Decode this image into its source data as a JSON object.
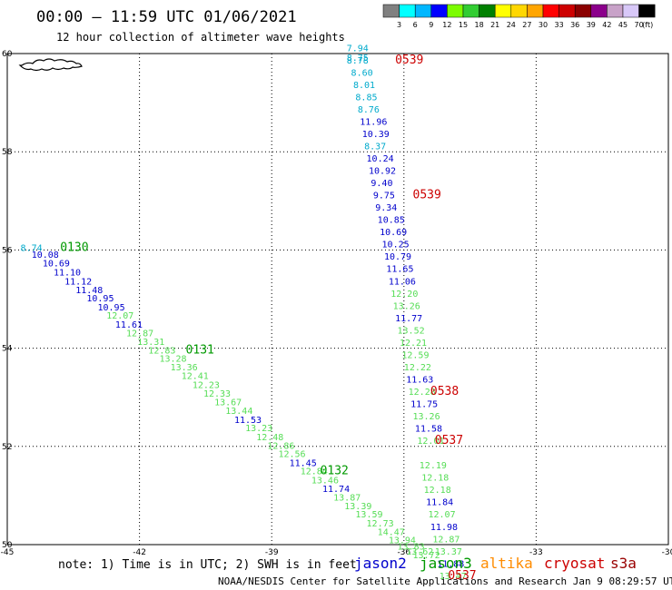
{
  "header": {
    "title": "00:00 — 11:59 UTC 01/06/2021",
    "subtitle": "12 hour collection of altimeter wave heights"
  },
  "colorbar": {
    "labels": [
      "3",
      "6",
      "9",
      "12",
      "15",
      "18",
      "21",
      "24",
      "27",
      "30",
      "33",
      "36",
      "39",
      "42",
      "45",
      "70"
    ],
    "colors": [
      "#808080",
      "#00ffff",
      "#00b7ff",
      "#0000ff",
      "#7cfc00",
      "#32cd32",
      "#008000",
      "#ffff00",
      "#ffd700",
      "#ffa500",
      "#ff0000",
      "#cd0000",
      "#8b0000",
      "#8b008b",
      "#c8a2c8",
      "#d8c8f8",
      "#000000"
    ],
    "unit": "(ft)"
  },
  "footer": {
    "note": "note: 1) Time is in UTC; 2) SWH is in feet",
    "credit": "NOAA/NESDIS Center for Satellite Applications and Research   Jan  9 08:29:57 UTC 2021"
  },
  "legend": [
    {
      "name": "jason2",
      "color": "#0000cc"
    },
    {
      "name": "jason3",
      "color": "#009900"
    },
    {
      "name": "altika",
      "color": "#ff8c00"
    },
    {
      "name": "cryosat",
      "color": "#cc0000"
    },
    {
      "name": "s3a",
      "color": "#990000"
    }
  ],
  "chart_data": {
    "type": "scatter",
    "xlim": [
      -45,
      -30
    ],
    "ylim": [
      50,
      60
    ],
    "xticks": [
      "-45",
      "-42",
      "-39",
      "-36",
      "-33",
      "-30"
    ],
    "yticks": [
      "50",
      "52",
      "54",
      "56",
      "58",
      "60"
    ],
    "grid": true,
    "series": [
      {
        "name": "jason3",
        "color_key": "jason3",
        "points": [
          {
            "x": -44.7,
            "y": 55.98,
            "v": "8.74",
            "c": "#00aacc"
          },
          {
            "x": -44.45,
            "y": 55.84,
            "v": "10.08",
            "c": "#0000cc"
          },
          {
            "x": -44.2,
            "y": 55.67,
            "v": "10.69",
            "c": "#0000cc"
          },
          {
            "x": -43.95,
            "y": 55.48,
            "v": "11.10",
            "c": "#0000cc"
          },
          {
            "x": -43.7,
            "y": 55.3,
            "v": "11.12",
            "c": "#0000cc"
          },
          {
            "x": -43.45,
            "y": 55.12,
            "v": "11.48",
            "c": "#0000cc"
          },
          {
            "x": -43.2,
            "y": 54.95,
            "v": "10.95",
            "c": "#0000cc"
          },
          {
            "x": -42.95,
            "y": 54.77,
            "v": "10.95",
            "c": "#0000cc"
          },
          {
            "x": -42.75,
            "y": 54.6,
            "v": "12.07",
            "c": "#55dd55"
          },
          {
            "x": -42.55,
            "y": 54.42,
            "v": "11.61",
            "c": "#0000cc"
          },
          {
            "x": -42.3,
            "y": 54.24,
            "v": "12.87",
            "c": "#55dd55"
          },
          {
            "x": -42.05,
            "y": 54.07,
            "v": "13.31",
            "c": "#55dd55"
          },
          {
            "x": -41.8,
            "y": 53.89,
            "v": "12.83",
            "c": "#55dd55"
          },
          {
            "x": -41.55,
            "y": 53.72,
            "v": "13.28",
            "c": "#55dd55"
          },
          {
            "x": -41.3,
            "y": 53.55,
            "v": "13.36",
            "c": "#55dd55"
          },
          {
            "x": -41.05,
            "y": 53.37,
            "v": "12.41",
            "c": "#55dd55"
          },
          {
            "x": -40.8,
            "y": 53.19,
            "v": "12.23",
            "c": "#55dd55"
          },
          {
            "x": -40.55,
            "y": 53.01,
            "v": "12.33",
            "c": "#55dd55"
          },
          {
            "x": -40.3,
            "y": 52.84,
            "v": "13.67",
            "c": "#55dd55"
          },
          {
            "x": -40.05,
            "y": 52.66,
            "v": "13.44",
            "c": "#55dd55"
          },
          {
            "x": -39.85,
            "y": 52.48,
            "v": "11.53",
            "c": "#0000cc"
          },
          {
            "x": -39.6,
            "y": 52.31,
            "v": "13.23",
            "c": "#55dd55"
          },
          {
            "x": -39.35,
            "y": 52.13,
            "v": "12.48",
            "c": "#55dd55"
          },
          {
            "x": -39.1,
            "y": 51.95,
            "v": "12.86",
            "c": "#55dd55"
          },
          {
            "x": -38.85,
            "y": 51.78,
            "v": "12.56",
            "c": "#55dd55"
          },
          {
            "x": -38.6,
            "y": 51.6,
            "v": "11.45",
            "c": "#0000cc"
          },
          {
            "x": -38.35,
            "y": 51.43,
            "v": "12.84",
            "c": "#55dd55"
          },
          {
            "x": -38.1,
            "y": 51.25,
            "v": "13.46",
            "c": "#55dd55"
          },
          {
            "x": -37.85,
            "y": 51.07,
            "v": "11.74",
            "c": "#0000cc"
          },
          {
            "x": -37.6,
            "y": 50.9,
            "v": "13.87",
            "c": "#55dd55"
          },
          {
            "x": -37.35,
            "y": 50.72,
            "v": "13.39",
            "c": "#55dd55"
          },
          {
            "x": -37.1,
            "y": 50.55,
            "v": "13.59",
            "c": "#55dd55"
          },
          {
            "x": -36.85,
            "y": 50.37,
            "v": "12.73",
            "c": "#55dd55"
          },
          {
            "x": -36.6,
            "y": 50.19,
            "v": "14.47",
            "c": "#55dd55"
          },
          {
            "x": -36.35,
            "y": 50.03,
            "v": "13.94",
            "c": "#55dd55"
          },
          {
            "x": -36.15,
            "y": 49.9,
            "v": "13.83",
            "c": "#55dd55"
          },
          {
            "x": -35.95,
            "y": 49.8,
            "v": "13.62",
            "c": "#55dd55"
          },
          {
            "x": -35.8,
            "y": 49.72,
            "v": "13.72",
            "c": "#55dd55"
          }
        ]
      },
      {
        "name": "cryosat",
        "color_key": "cryosat",
        "points": [
          {
            "x": -37.3,
            "y": 60.05,
            "v": "7.94",
            "c": "#00aacc"
          },
          {
            "x": -37.3,
            "y": 59.85,
            "v": "8.75",
            "c": "#00aacc"
          },
          {
            "x": -37.3,
            "y": 59.8,
            "v": "8.78",
            "c": "#00aacc"
          },
          {
            "x": -37.2,
            "y": 59.55,
            "v": "8.60",
            "c": "#00aacc"
          },
          {
            "x": -37.15,
            "y": 59.3,
            "v": "8.01",
            "c": "#00aacc"
          },
          {
            "x": -37.1,
            "y": 59.05,
            "v": "8.85",
            "c": "#00aacc"
          },
          {
            "x": -37.05,
            "y": 58.8,
            "v": "8.76",
            "c": "#00aacc"
          },
          {
            "x": -37.0,
            "y": 58.55,
            "v": "11.96",
            "c": "#0000cc"
          },
          {
            "x": -36.95,
            "y": 58.3,
            "v": "10.39",
            "c": "#0000cc"
          },
          {
            "x": -36.9,
            "y": 58.05,
            "v": "8.37",
            "c": "#00aacc"
          },
          {
            "x": -36.85,
            "y": 57.8,
            "v": "10.24",
            "c": "#0000cc"
          },
          {
            "x": -36.8,
            "y": 57.55,
            "v": "10.92",
            "c": "#0000cc"
          },
          {
            "x": -36.75,
            "y": 57.3,
            "v": "9.40",
            "c": "#0000cc"
          },
          {
            "x": -36.7,
            "y": 57.05,
            "v": "9.75",
            "c": "#0000cc"
          },
          {
            "x": -36.65,
            "y": 56.8,
            "v": "9.34",
            "c": "#0000cc"
          },
          {
            "x": -36.6,
            "y": 56.55,
            "v": "10.85",
            "c": "#0000cc"
          },
          {
            "x": -36.55,
            "y": 56.3,
            "v": "10.69",
            "c": "#0000cc"
          },
          {
            "x": -36.5,
            "y": 56.05,
            "v": "10.25",
            "c": "#0000cc"
          },
          {
            "x": -36.45,
            "y": 55.8,
            "v": "10.79",
            "c": "#0000cc"
          },
          {
            "x": -36.4,
            "y": 55.55,
            "v": "11.65",
            "c": "#0000cc"
          },
          {
            "x": -36.35,
            "y": 55.3,
            "v": "11.06",
            "c": "#0000cc"
          },
          {
            "x": -36.3,
            "y": 55.05,
            "v": "12.20",
            "c": "#55dd55"
          },
          {
            "x": -36.25,
            "y": 54.8,
            "v": "13.26",
            "c": "#55dd55"
          },
          {
            "x": -36.2,
            "y": 54.55,
            "v": "11.77",
            "c": "#0000cc"
          },
          {
            "x": -36.15,
            "y": 54.3,
            "v": "13.52",
            "c": "#55dd55"
          },
          {
            "x": -36.1,
            "y": 54.05,
            "v": "12.21",
            "c": "#55dd55"
          },
          {
            "x": -36.05,
            "y": 53.8,
            "v": "12.59",
            "c": "#55dd55"
          },
          {
            "x": -36.0,
            "y": 53.55,
            "v": "12.22",
            "c": "#55dd55"
          },
          {
            "x": -35.95,
            "y": 53.3,
            "v": "11.63",
            "c": "#0000cc"
          },
          {
            "x": -35.9,
            "y": 53.05,
            "v": "12.28",
            "c": "#55dd55"
          },
          {
            "x": -35.85,
            "y": 52.8,
            "v": "11.75",
            "c": "#0000cc"
          },
          {
            "x": -35.8,
            "y": 52.55,
            "v": "13.26",
            "c": "#55dd55"
          },
          {
            "x": -35.75,
            "y": 52.3,
            "v": "11.58",
            "c": "#0000cc"
          },
          {
            "x": -35.7,
            "y": 52.05,
            "v": "12.01",
            "c": "#55dd55"
          },
          {
            "x": -35.65,
            "y": 51.55,
            "v": "12.19",
            "c": "#55dd55"
          },
          {
            "x": -35.6,
            "y": 51.3,
            "v": "12.18",
            "c": "#55dd55"
          },
          {
            "x": -35.55,
            "y": 51.05,
            "v": "12.18",
            "c": "#55dd55"
          },
          {
            "x": -35.5,
            "y": 50.8,
            "v": "11.84",
            "c": "#0000cc"
          },
          {
            "x": -35.45,
            "y": 50.55,
            "v": "12.07",
            "c": "#55dd55"
          },
          {
            "x": -35.4,
            "y": 50.3,
            "v": "11.98",
            "c": "#0000cc"
          },
          {
            "x": -35.35,
            "y": 50.05,
            "v": "12.87",
            "c": "#55dd55"
          },
          {
            "x": -35.3,
            "y": 49.8,
            "v": "13.37",
            "c": "#55dd55"
          },
          {
            "x": -35.25,
            "y": 49.55,
            "v": "11.88",
            "c": "#0000cc"
          },
          {
            "x": -35.2,
            "y": 49.3,
            "v": "13.47",
            "c": "#55dd55"
          }
        ]
      }
    ],
    "pass_labels": [
      {
        "text": "0539",
        "x": -36.2,
        "y": 59.8,
        "c": "#cc0000"
      },
      {
        "text": "0539",
        "x": -35.8,
        "y": 57.05,
        "c": "#cc0000"
      },
      {
        "text": "0538",
        "x": -35.4,
        "y": 53.05,
        "c": "#cc0000"
      },
      {
        "text": "0537",
        "x": -35.3,
        "y": 52.05,
        "c": "#cc0000"
      },
      {
        "text": "0537",
        "x": -35.0,
        "y": 49.3,
        "c": "#cc0000"
      },
      {
        "text": "0130",
        "x": -43.8,
        "y": 55.98,
        "c": "#009900"
      },
      {
        "text": "0131",
        "x": -40.95,
        "y": 53.89,
        "c": "#009900"
      },
      {
        "text": "0132",
        "x": -37.9,
        "y": 51.43,
        "c": "#009900"
      }
    ]
  }
}
